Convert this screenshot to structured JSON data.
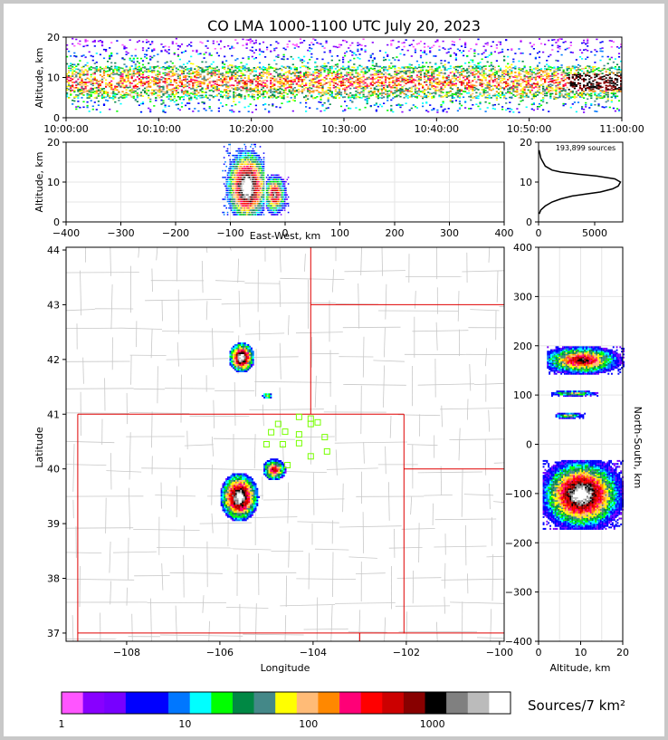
{
  "title": "CO LMA 1000-1100 UTC July 20, 2023",
  "panels": {
    "time_height": {
      "ylabel": "Altitude, km",
      "x_ticks": [
        "10:00:00",
        "10:10:00",
        "10:20:00",
        "10:30:00",
        "10:40:00",
        "10:50:00",
        "11:00:00"
      ],
      "y_ticks": [
        "0",
        "10",
        "20"
      ]
    },
    "ew_height": {
      "ylabel": "Altitude, km",
      "xlabel": "East-West, km",
      "x_ticks": [
        "−400",
        "−300",
        "−200",
        "−100",
        "0",
        "100",
        "200",
        "300",
        "400"
      ],
      "y_ticks": [
        "0",
        "10",
        "20"
      ]
    },
    "histogram": {
      "annotation": "193,899 sources",
      "x_ticks": [
        "0",
        "5000"
      ],
      "y_ticks": [
        "0",
        "10",
        "20"
      ]
    },
    "plan_view": {
      "xlabel": "Longitude",
      "ylabel": "Latitude",
      "x_ticks": [
        "−108",
        "−106",
        "−104",
        "−102",
        "−100"
      ],
      "y_ticks": [
        "37",
        "38",
        "39",
        "40",
        "41",
        "42",
        "43",
        "44"
      ]
    },
    "ns_height": {
      "xlabel": "Altitude, km",
      "ylabel": "North-South, km",
      "x_ticks": [
        "0",
        "10",
        "20"
      ],
      "y_ticks": [
        "−400",
        "−300",
        "−200",
        "−100",
        "0",
        "100",
        "200",
        "300",
        "400"
      ]
    }
  },
  "colorbar": {
    "label": "Sources/7 km²",
    "tick_labels": [
      "1",
      "10",
      "100",
      "1000"
    ],
    "colors": [
      "#ff55ff",
      "#8800ff",
      "#7700ff",
      "#0000ff",
      "#0000ff",
      "#0077ff",
      "#00ffff",
      "#00ff00",
      "#008844",
      "#448888",
      "#ffff00",
      "#ffbb77",
      "#ff8800",
      "#ff0077",
      "#ff0000",
      "#cc0000",
      "#880000",
      "#000000",
      "#808080",
      "#bbbbbb",
      "#ffffff"
    ]
  },
  "chart_data": [
    {
      "type": "heatmap",
      "title": "CO LMA 1000-1100 UTC July 20, 2023",
      "xlabel": "",
      "ylabel": "Altitude, km",
      "xlim": [
        "10:00:00",
        "11:00:00"
      ],
      "ylim": [
        0,
        20
      ],
      "description_values": {
        "source_altitude_range_km": [
          2,
          19
        ],
        "peak_density_altitude_km": [
          7,
          11
        ]
      }
    },
    {
      "type": "heatmap",
      "xlabel": "East-West, km",
      "ylabel": "Altitude, km",
      "xlim": [
        -400,
        400
      ],
      "ylim": [
        0,
        20
      ],
      "cells": [
        {
          "x_range": [
            -115,
            -40
          ],
          "alt_range": [
            2,
            20
          ],
          "peak_x": -70,
          "peak_alt": 9
        },
        {
          "x_range": [
            -35,
            5
          ],
          "alt_range": [
            2,
            12
          ],
          "peak_x": -20,
          "peak_alt": 7
        }
      ]
    },
    {
      "type": "line",
      "title": "193,899 sources",
      "xlim": [
        0,
        7500
      ],
      "ylim": [
        0,
        20
      ],
      "x": [
        60,
        200,
        600,
        1200,
        2000,
        3000,
        4200,
        5500,
        6600,
        7100,
        7300,
        6800,
        5200,
        3500,
        2000,
        1200,
        600,
        200,
        50
      ],
      "y": [
        2,
        3,
        4,
        5,
        5.8,
        6.5,
        7,
        7.5,
        8.3,
        9,
        10,
        10.8,
        11.5,
        12,
        12.5,
        13,
        14,
        16,
        18
      ]
    },
    {
      "type": "heatmap",
      "xlabel": "Longitude",
      "ylabel": "Latitude",
      "xlim": [
        -109.3,
        -99.9
      ],
      "ylim": [
        36.85,
        44.05
      ],
      "clusters": [
        {
          "lon": -105.6,
          "lat": 39.5,
          "intensity": "high"
        },
        {
          "lon": -104.85,
          "lat": 40.0,
          "intensity": "medium"
        },
        {
          "lon": -105.55,
          "lat": 42.05,
          "intensity": "high"
        },
        {
          "lon": -105.0,
          "lat": 41.35,
          "intensity": "low"
        }
      ],
      "stations": [
        {
          "lon": -104.3,
          "lat": 40.95
        },
        {
          "lon": -104.05,
          "lat": 40.92
        },
        {
          "lon": -104.05,
          "lat": 40.82
        },
        {
          "lon": -103.9,
          "lat": 40.85
        },
        {
          "lon": -104.75,
          "lat": 40.82
        },
        {
          "lon": -104.9,
          "lat": 40.67
        },
        {
          "lon": -104.6,
          "lat": 40.68
        },
        {
          "lon": -104.3,
          "lat": 40.63
        },
        {
          "lon": -103.75,
          "lat": 40.58
        },
        {
          "lon": -105.0,
          "lat": 40.45
        },
        {
          "lon": -104.65,
          "lat": 40.45
        },
        {
          "lon": -104.3,
          "lat": 40.47
        },
        {
          "lon": -103.7,
          "lat": 40.32
        },
        {
          "lon": -104.05,
          "lat": 40.23
        },
        {
          "lon": -104.55,
          "lat": 40.07
        }
      ]
    },
    {
      "type": "heatmap",
      "xlabel": "Altitude, km",
      "ylabel": "North-South, km",
      "xlim": [
        0,
        20
      ],
      "ylim": [
        -400,
        400
      ],
      "bands": [
        {
          "ns_range": [
            -170,
            -30
          ],
          "alt_range": [
            1,
            20
          ],
          "peak_alt": 10
        },
        {
          "ns_range": [
            55,
            65
          ],
          "alt_range": [
            4,
            11
          ],
          "peak_alt": 7
        },
        {
          "ns_range": [
            100,
            110
          ],
          "alt_range": [
            3,
            14
          ],
          "peak_alt": 8
        },
        {
          "ns_range": [
            145,
            200
          ],
          "alt_range": [
            2,
            20
          ],
          "peak_alt": 10
        }
      ]
    }
  ]
}
